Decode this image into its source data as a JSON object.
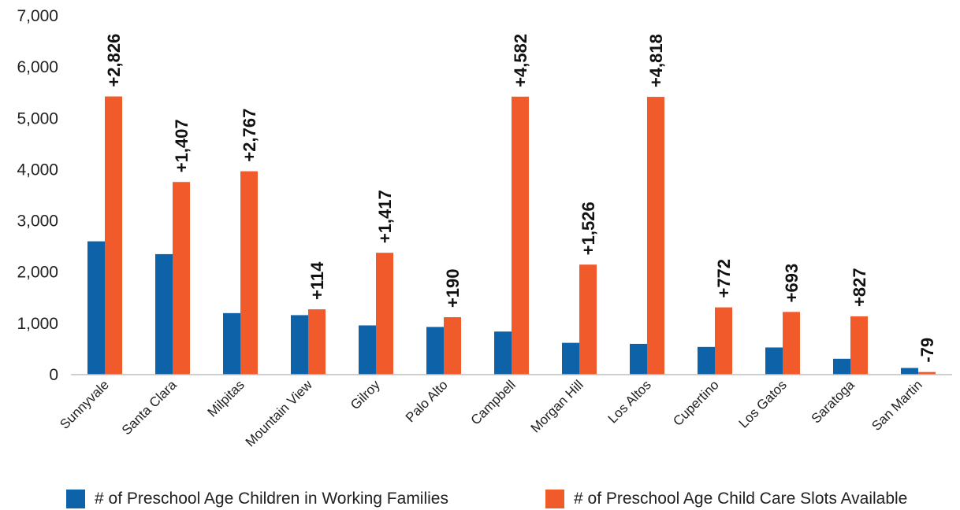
{
  "chart_data": {
    "type": "bar",
    "title": "",
    "xlabel": "",
    "ylabel": "",
    "ylim": [
      0,
      7000
    ],
    "yticks": [
      0,
      1000,
      2000,
      3000,
      4000,
      5000,
      6000,
      7000
    ],
    "ytick_labels": [
      "0",
      "1,000",
      "2,000",
      "3,000",
      "4,000",
      "5,000",
      "6,000",
      "7,000"
    ],
    "grid": false,
    "legend_position": "bottom",
    "categories": [
      "Sunnyvale",
      "Santa Clara",
      "Milpitas",
      "Mountain View",
      "Gilroy",
      "Palo Alto",
      "Campbell",
      "Morgan Hill",
      "Los Altos",
      "Cupertino",
      "Los Gatos",
      "Saratoga",
      "San Martin"
    ],
    "series": [
      {
        "name": "# of Preschool Age Children in Working Families",
        "color": "#0e63a8",
        "values": [
          2600,
          2350,
          1200,
          1160,
          960,
          930,
          840,
          620,
          600,
          540,
          530,
          310,
          130
        ]
      },
      {
        "name": "# of Preschool Age Child Care Slots Available",
        "color": "#f15a2b",
        "values": [
          5426,
          3757,
          3967,
          1274,
          2377,
          1120,
          5422,
          2146,
          5418,
          1312,
          1223,
          1137,
          51
        ]
      }
    ],
    "data_labels": [
      "+2,826",
      "+1,407",
      "+2,767",
      "+114",
      "+1,417",
      "+190",
      "+4,582",
      "+1,526",
      "+4,818",
      "+772",
      "+693",
      "+827",
      "-79"
    ]
  }
}
